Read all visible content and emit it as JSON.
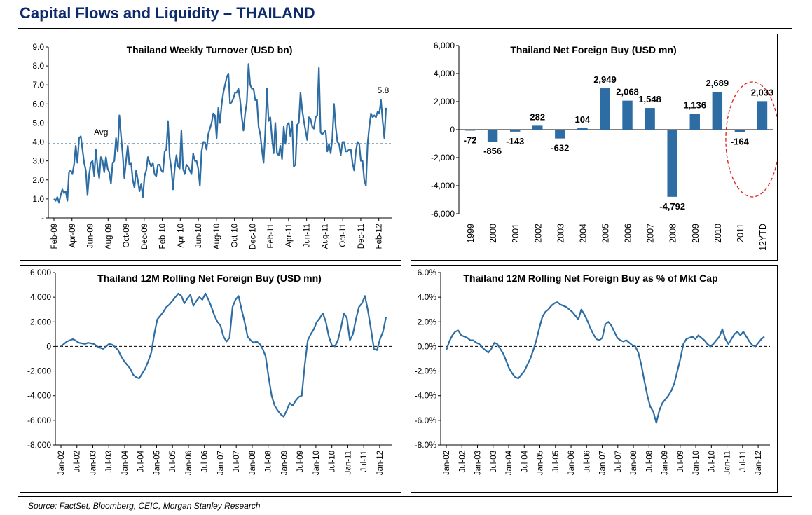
{
  "page": {
    "title": "Capital Flows and Liquidity – THAILAND",
    "source": "Source: FactSet, Bloomberg, CEIC, Morgan Stanley Research"
  },
  "colors": {
    "series": "#2e6da4",
    "title": "#0d2a6b",
    "highlight": "#e02020"
  },
  "chart_data": [
    {
      "id": "turnover",
      "type": "line",
      "title": "Thailand Weekly Turnover (USD bn)",
      "ylim": [
        0,
        9
      ],
      "y_ticks": [
        "-",
        "1.0",
        "2.0",
        "3.0",
        "4.0",
        "5.0",
        "6.0",
        "7.0",
        "8.0",
        "9.0"
      ],
      "x_ticks": [
        "Feb-09",
        "Apr-09",
        "Jun-09",
        "Aug-09",
        "Oct-09",
        "Dec-09",
        "Feb-10",
        "Apr-10",
        "Jun-10",
        "Aug-10",
        "Oct-10",
        "Dec-10",
        "Feb-11",
        "Apr-11",
        "Jun-11",
        "Aug-11",
        "Oct-11",
        "Dec-11",
        "Feb-12"
      ],
      "average": {
        "label": "Avg",
        "value": 3.9
      },
      "end_label": "5.8",
      "x_start": "2009-02",
      "series": [
        {
          "values": [
            1.0,
            0.9,
            1.1,
            0.8,
            1.2,
            1.5,
            1.3,
            1.4,
            0.9,
            2.4,
            2.5,
            2.3,
            2.8,
            3.8,
            2.9,
            4.2,
            4.3,
            3.6,
            2.9,
            2.5,
            1.2,
            2.3,
            2.9,
            3.0,
            2.2,
            3.6,
            2.7,
            2.1,
            3.2,
            3.0,
            2.4,
            3.2,
            2.6,
            2.4,
            1.8,
            2.9,
            3.0,
            4.2,
            3.5,
            5.4,
            4.3,
            3.3,
            2.1,
            3.0,
            3.8,
            2.8,
            2.9,
            2.0,
            1.6,
            2.5,
            2.0,
            1.4,
            1.8,
            1.1,
            2.2,
            2.5,
            3.2,
            2.9,
            2.7,
            2.9,
            2.3,
            2.2,
            2.8,
            2.8,
            2.5,
            2.4,
            3.5,
            3.6,
            5.1,
            3.2,
            2.6,
            1.5,
            2.6,
            3.3,
            2.7,
            2.6,
            4.6,
            2.6,
            2.3,
            2.8,
            2.7,
            2.5,
            2.3,
            3.4,
            3.0,
            3.0,
            2.6,
            1.7,
            3.5,
            4.0,
            4.0,
            3.6,
            4.4,
            4.7,
            5.0,
            5.5,
            5.4,
            4.2,
            5.8,
            5.0,
            6.0,
            6.6,
            7.0,
            7.4,
            7.6,
            6.0,
            6.1,
            6.3,
            6.6,
            6.6,
            6.8,
            6.2,
            5.3,
            4.6,
            5.5,
            6.1,
            8.1,
            7.0,
            6.8,
            6.8,
            6.2,
            6.2,
            4.8,
            4.4,
            3.6,
            2.9,
            4.5,
            6.8,
            5.1,
            5.3,
            4.2,
            3.4,
            5.0,
            3.4,
            3.3,
            3.8,
            3.1,
            4.8,
            3.9,
            4.9,
            5.0,
            4.3,
            5.1,
            2.7,
            2.8,
            4.9,
            5.0,
            6.6,
            5.7,
            5.1,
            4.6,
            4.1,
            5.3,
            5.2,
            4.8,
            4.7,
            5.3,
            5.4,
            7.9,
            4.5,
            4.4,
            4.5,
            4.6,
            3.5,
            3.9,
            3.4,
            4.2,
            6.0,
            4.8,
            4.0,
            3.9,
            3.3,
            4.0,
            4.0,
            3.5,
            3.5,
            3.6,
            3.6,
            2.9,
            2.5,
            3.5,
            4.0,
            3.9,
            3.0,
            3.0,
            2.0,
            1.7,
            3.9,
            4.8,
            5.5,
            5.3,
            5.4,
            5.3,
            5.6,
            5.5,
            6.2,
            5.1,
            4.2,
            5.8
          ]
        }
      ]
    },
    {
      "id": "net-foreign-buy",
      "type": "bar",
      "title": "Thailand Net Foreign Buy (USD mn)",
      "ylim": [
        -6000,
        6000
      ],
      "y_ticks": [
        "-6,000",
        "-4,000",
        "-2,000",
        "0",
        "2,000",
        "4,000",
        "6,000"
      ],
      "categories": [
        "1999",
        "2000",
        "2001",
        "2002",
        "2003",
        "2004",
        "2005",
        "2006",
        "2007",
        "2008",
        "2009",
        "2010",
        "2011",
        "12YTD"
      ],
      "values": [
        -72,
        -856,
        -143,
        282,
        -632,
        104,
        2949,
        2068,
        1548,
        -4792,
        1136,
        2689,
        -164,
        2033
      ],
      "labels": [
        "-72",
        "-856",
        "-143",
        "282",
        "-632",
        "104",
        "2,949",
        "2,068",
        "1,548",
        "-4,792",
        "1,136",
        "2,689",
        "-164",
        "2,033"
      ]
    },
    {
      "id": "rolling-usd",
      "type": "line",
      "title": "Thailand 12M Rolling Net Foreign Buy (USD mn)",
      "ylim": [
        -8000,
        6000
      ],
      "y_ticks": [
        "-8,000",
        "-6,000",
        "-4,000",
        "-2,000",
        "0",
        "2,000",
        "4,000",
        "6,000"
      ],
      "x_ticks": [
        "Jan-02",
        "Jul-02",
        "Jan-03",
        "Jul-03",
        "Jan-04",
        "Jul-04",
        "Jan-05",
        "Jul-05",
        "Jan-06",
        "Jul-06",
        "Jan-07",
        "Jul-07",
        "Jan-08",
        "Jul-08",
        "Jan-09",
        "Jul-09",
        "Jan-10",
        "Jul-10",
        "Jan-11",
        "Jul-11",
        "Jan-12"
      ],
      "x_start": "2002-01",
      "series": [
        {
          "values": [
            0,
            200,
            400,
            500,
            600,
            450,
            300,
            250,
            200,
            300,
            250,
            200,
            0,
            -100,
            -200,
            0,
            200,
            150,
            -50,
            -300,
            -800,
            -1200,
            -1500,
            -1800,
            -2300,
            -2500,
            -2600,
            -2200,
            -1800,
            -1200,
            -500,
            1000,
            2200,
            2500,
            2800,
            3200,
            3400,
            3700,
            4000,
            4300,
            4100,
            3500,
            3900,
            4200,
            3300,
            3700,
            4000,
            3800,
            4300,
            3800,
            3200,
            2500,
            2000,
            1700,
            800,
            400,
            700,
            3200,
            3800,
            4100,
            3000,
            2000,
            800,
            500,
            300,
            400,
            200,
            -200,
            -800,
            -2500,
            -4000,
            -4800,
            -5200,
            -5500,
            -5700,
            -5200,
            -4600,
            -4800,
            -4400,
            -4100,
            -4000,
            -1500,
            500,
            1000,
            1400,
            2000,
            2300,
            2700,
            2000,
            800,
            100,
            0,
            500,
            1500,
            2700,
            2300,
            500,
            1000,
            2200,
            3200,
            3500,
            4100,
            2900,
            1400,
            -200,
            -300,
            600,
            1200,
            2400
          ]
        }
      ]
    },
    {
      "id": "rolling-pct",
      "type": "line",
      "title": "Thailand 12M Rolling Net Foreign Buy as % of Mkt Cap",
      "ylim": [
        -8,
        6
      ],
      "y_ticks": [
        "-8.0%",
        "-6.0%",
        "-4.0%",
        "-2.0%",
        "0.0%",
        "2.0%",
        "4.0%",
        "6.0%"
      ],
      "x_ticks": [
        "Jan-02",
        "Jul-02",
        "Jan-03",
        "Jul-03",
        "Jan-04",
        "Jul-04",
        "Jan-05",
        "Jul-05",
        "Jan-06",
        "Jul-06",
        "Jan-07",
        "Jul-07",
        "Jan-08",
        "Jul-08",
        "Jan-09",
        "Jul-09",
        "Jan-10",
        "Jul-10",
        "Jan-11",
        "Jul-11",
        "Jan-12"
      ],
      "x_start": "2002-01",
      "series": [
        {
          "values": [
            -0.3,
            0.4,
            0.9,
            1.2,
            1.3,
            0.9,
            0.8,
            0.7,
            0.5,
            0.5,
            0.3,
            0.2,
            -0.1,
            -0.3,
            -0.5,
            -0.2,
            0.3,
            0.2,
            -0.2,
            -0.6,
            -1.2,
            -1.8,
            -2.2,
            -2.5,
            -2.6,
            -2.3,
            -2.0,
            -1.5,
            -1.0,
            -0.3,
            0.5,
            1.5,
            2.4,
            2.8,
            3.0,
            3.3,
            3.5,
            3.6,
            3.4,
            3.3,
            3.2,
            3.0,
            2.8,
            2.5,
            2.2,
            3.0,
            2.6,
            2.1,
            1.5,
            1.0,
            0.6,
            0.5,
            0.7,
            1.8,
            2.0,
            1.7,
            1.2,
            0.7,
            0.5,
            0.4,
            0.5,
            0.3,
            0.1,
            0.0,
            -0.5,
            -1.5,
            -2.8,
            -4.0,
            -4.9,
            -5.3,
            -6.2,
            -5.2,
            -4.6,
            -4.3,
            -4.0,
            -3.6,
            -3.0,
            -2.0,
            -1.0,
            0.2,
            0.6,
            0.7,
            0.8,
            0.6,
            0.9,
            0.7,
            0.5,
            0.2,
            0.0,
            0.2,
            0.5,
            0.8,
            1.4,
            0.6,
            0.2,
            0.6,
            1.0,
            1.2,
            0.9,
            1.2,
            0.8,
            0.4,
            0.1,
            0.0,
            0.3,
            0.6,
            0.8
          ]
        }
      ]
    }
  ]
}
